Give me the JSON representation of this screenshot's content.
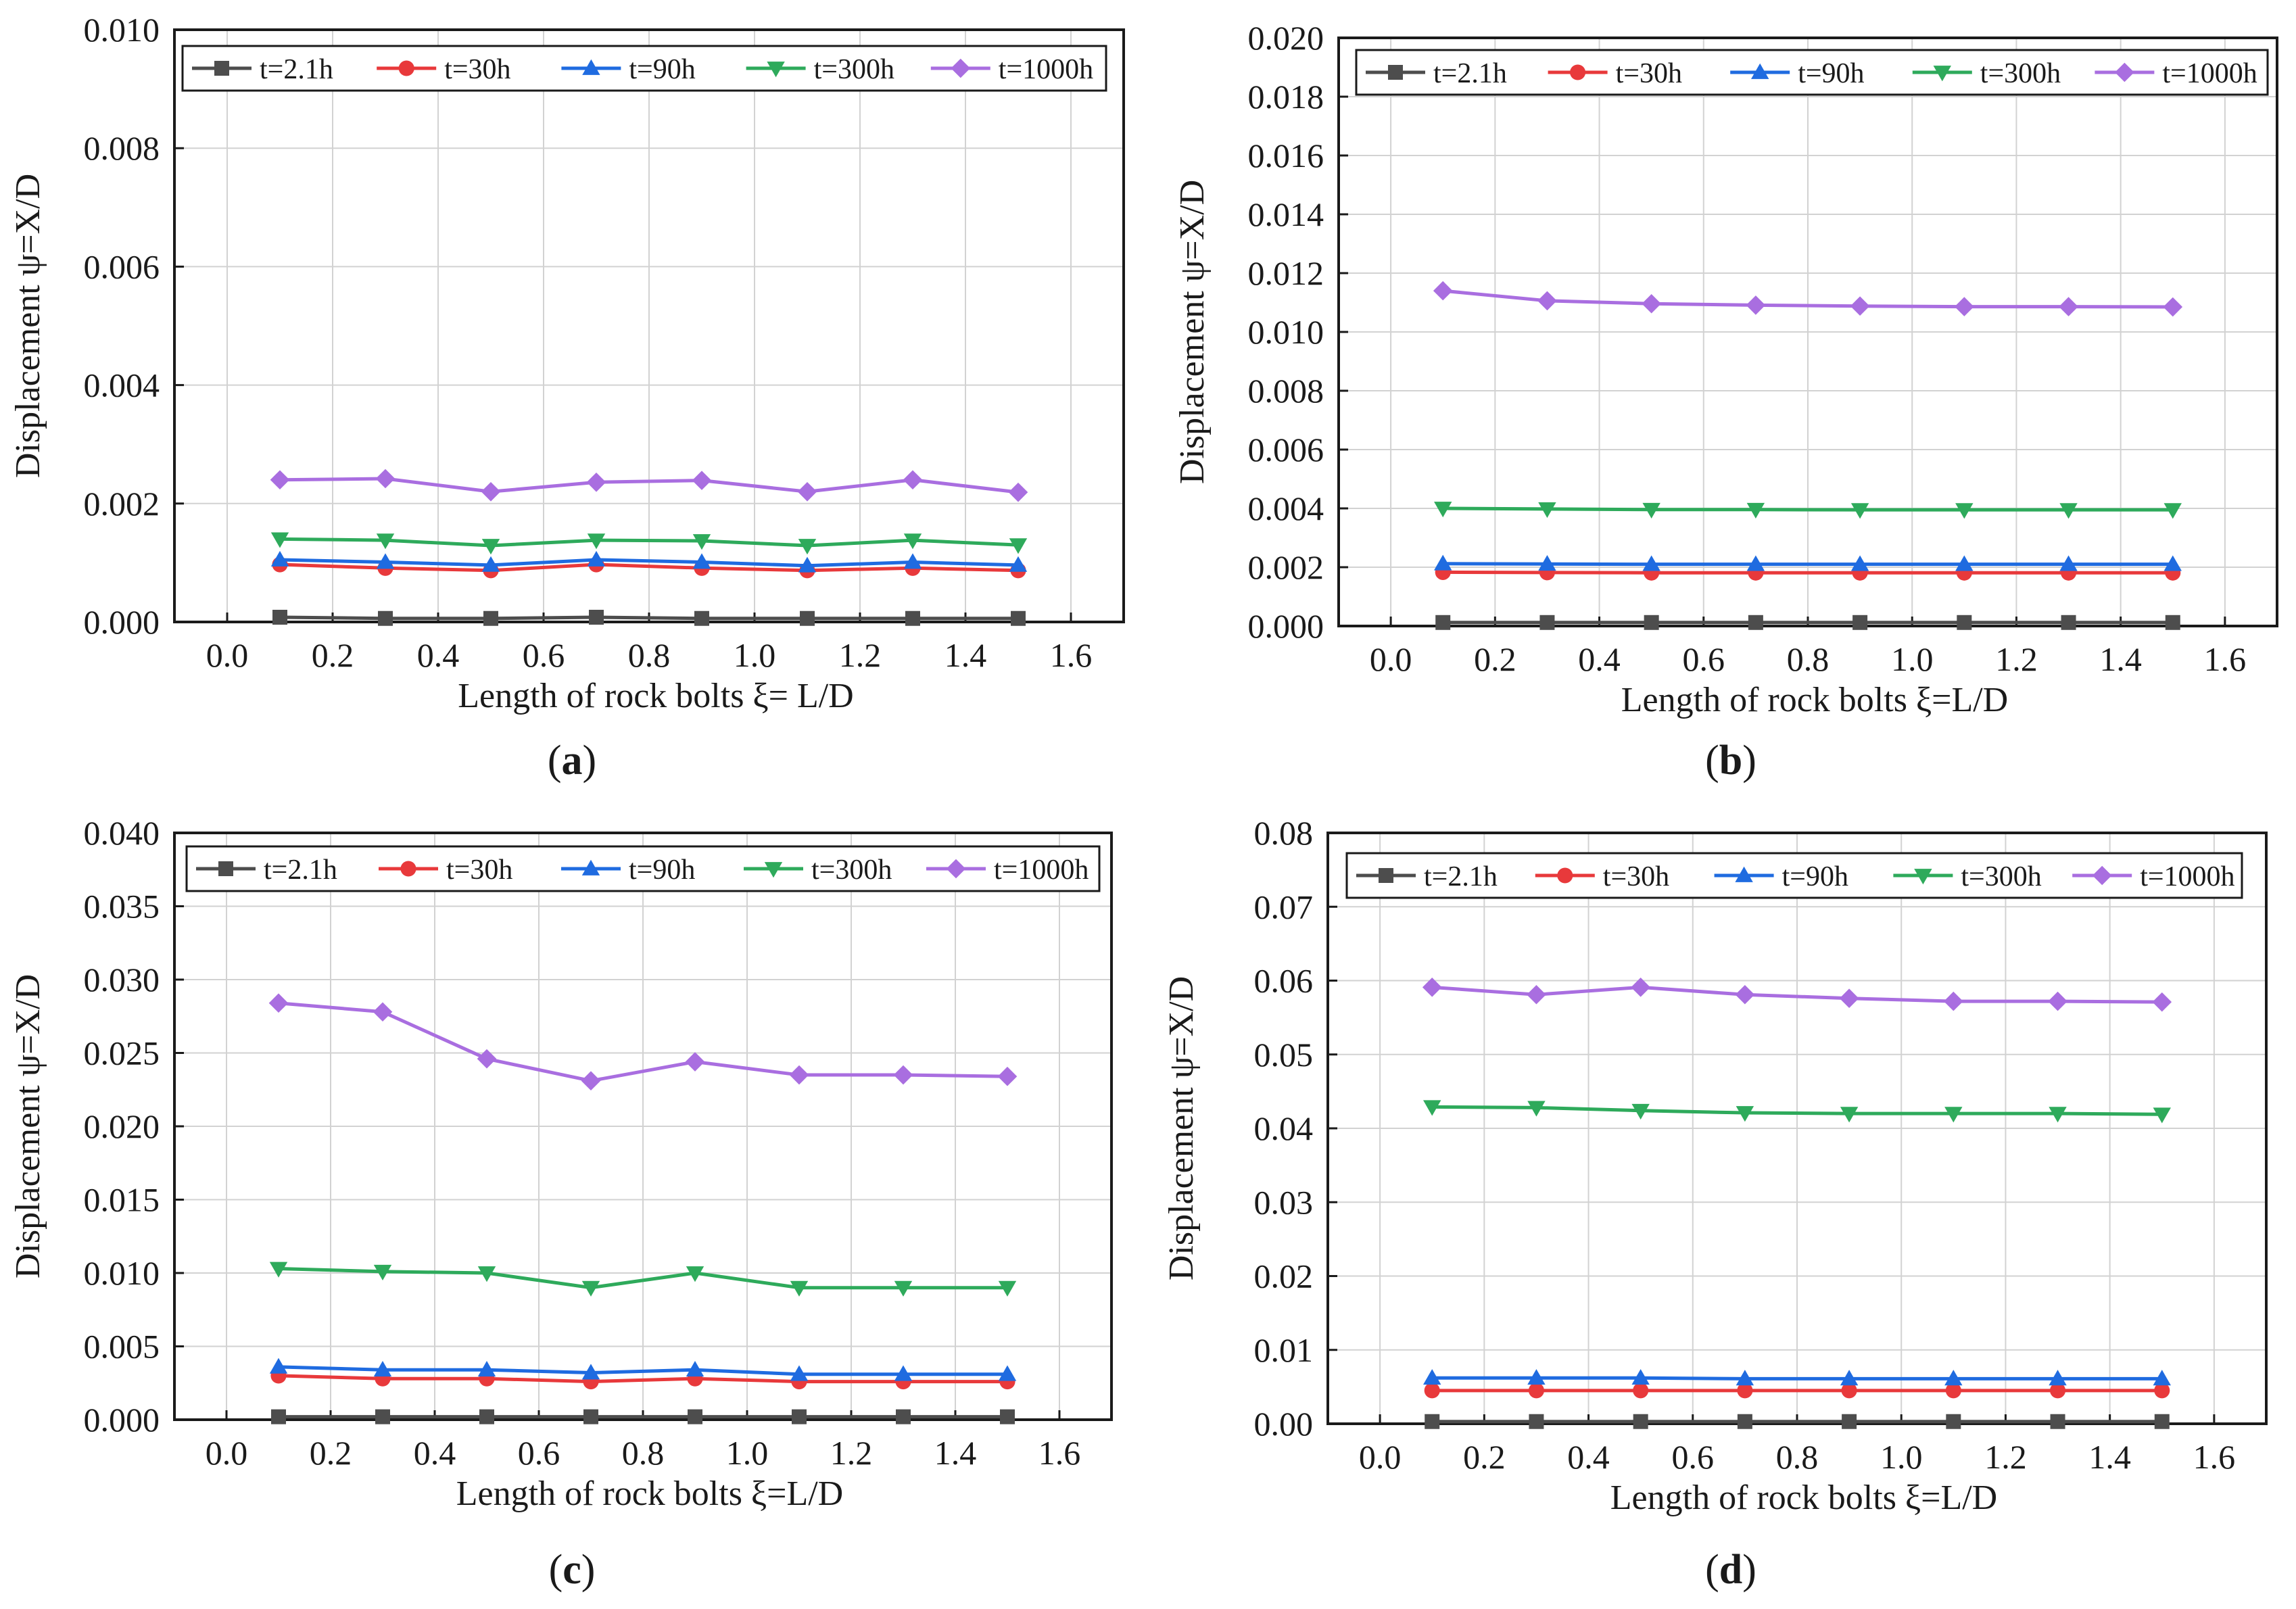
{
  "series_styles": [
    {
      "name": "t=2.1h",
      "color": "#4d4d4d",
      "marker": "square"
    },
    {
      "name": "t=30h",
      "color": "#e8393b",
      "marker": "circle"
    },
    {
      "name": "t=90h",
      "color": "#1f6be0",
      "marker": "triangle-up"
    },
    {
      "name": "t=300h",
      "color": "#2eaa5b",
      "marker": "triangle-down"
    },
    {
      "name": "t=1000h",
      "color": "#a96ee0",
      "marker": "diamond"
    }
  ],
  "chart_data": [
    {
      "type": "line",
      "panel_label": "a",
      "xlabel": "Length of rock bolts ξ= L/D",
      "ylabel": "Displacement ψ=X/D",
      "xlim": [
        -0.1,
        1.7
      ],
      "ylim": [
        0,
        0.01
      ],
      "xticks": [
        0.0,
        0.2,
        0.4,
        0.6,
        0.8,
        1.0,
        1.2,
        1.4,
        1.6
      ],
      "xtick_labels": [
        "0.0",
        "0.2",
        "0.4",
        "0.6",
        "0.8",
        "1.0",
        "1.2",
        "1.4",
        "1.6"
      ],
      "yticks": [
        0,
        0.002,
        0.004,
        0.006,
        0.008,
        0.01
      ],
      "ytick_labels": [
        "0.000",
        "0.002",
        "0.004",
        "0.006",
        "0.008",
        "0.010"
      ],
      "grid": true,
      "legend_position": "top",
      "x": [
        0.1,
        0.3,
        0.5,
        0.7,
        0.9,
        1.1,
        1.3,
        1.5
      ],
      "series": [
        {
          "name": "t=2.1h",
          "values": [
            8e-05,
            6e-05,
            6e-05,
            8e-05,
            6e-05,
            6e-05,
            6e-05,
            6e-05
          ]
        },
        {
          "name": "t=30h",
          "values": [
            0.00097,
            0.00091,
            0.00087,
            0.00097,
            0.00091,
            0.00087,
            0.00091,
            0.00087
          ]
        },
        {
          "name": "t=90h",
          "values": [
            0.00105,
            0.00101,
            0.00096,
            0.00105,
            0.00101,
            0.00095,
            0.00101,
            0.00096
          ]
        },
        {
          "name": "t=300h",
          "values": [
            0.0014,
            0.00138,
            0.00129,
            0.00138,
            0.00137,
            0.00129,
            0.00138,
            0.0013
          ]
        },
        {
          "name": "t=1000h",
          "values": [
            0.0024,
            0.00242,
            0.0022,
            0.00236,
            0.00239,
            0.0022,
            0.0024,
            0.00219
          ]
        }
      ]
    },
    {
      "type": "line",
      "panel_label": "b",
      "xlabel": "Length of rock bolts ξ=L/D",
      "ylabel": "Displacement ψ=X/D",
      "xlim": [
        -0.1,
        1.7
      ],
      "ylim": [
        0,
        0.02
      ],
      "xticks": [
        0.0,
        0.2,
        0.4,
        0.6,
        0.8,
        1.0,
        1.2,
        1.4,
        1.6
      ],
      "xtick_labels": [
        "0.0",
        "0.2",
        "0.4",
        "0.6",
        "0.8",
        "1.0",
        "1.2",
        "1.4",
        "1.6"
      ],
      "yticks": [
        0,
        0.002,
        0.004,
        0.006,
        0.008,
        0.01,
        0.012,
        0.014,
        0.016,
        0.018,
        0.02
      ],
      "ytick_labels": [
        "0.000",
        "0.002",
        "0.004",
        "0.006",
        "0.008",
        "0.010",
        "0.012",
        "0.014",
        "0.016",
        "0.018",
        "0.020"
      ],
      "grid": true,
      "legend_position": "top",
      "x": [
        0.1,
        0.3,
        0.5,
        0.7,
        0.9,
        1.1,
        1.3,
        1.5
      ],
      "series": [
        {
          "name": "t=2.1h",
          "values": [
            0.00012,
            0.00012,
            0.00012,
            0.00012,
            0.00012,
            0.00012,
            0.00012,
            0.00012
          ]
        },
        {
          "name": "t=30h",
          "values": [
            0.00183,
            0.00182,
            0.00181,
            0.00181,
            0.00181,
            0.00181,
            0.00181,
            0.00181
          ]
        },
        {
          "name": "t=90h",
          "values": [
            0.00212,
            0.00211,
            0.0021,
            0.0021,
            0.0021,
            0.0021,
            0.0021,
            0.0021
          ]
        },
        {
          "name": "t=300h",
          "values": [
            0.004,
            0.00398,
            0.00396,
            0.00396,
            0.00395,
            0.00395,
            0.00395,
            0.00395
          ]
        },
        {
          "name": "t=1000h",
          "values": [
            0.0114,
            0.01106,
            0.01096,
            0.01091,
            0.01088,
            0.01086,
            0.01086,
            0.01085
          ]
        }
      ]
    },
    {
      "type": "line",
      "panel_label": "c",
      "xlabel": "Length of rock bolts ξ=L/D",
      "ylabel": "Displacement ψ=X/D",
      "xlim": [
        -0.1,
        1.7
      ],
      "ylim": [
        0,
        0.04
      ],
      "xticks": [
        0.0,
        0.2,
        0.4,
        0.6,
        0.8,
        1.0,
        1.2,
        1.4,
        1.6
      ],
      "xtick_labels": [
        "0.0",
        "0.2",
        "0.4",
        "0.6",
        "0.8",
        "1.0",
        "1.2",
        "1.4",
        "1.6"
      ],
      "yticks": [
        0,
        0.005,
        0.01,
        0.015,
        0.02,
        0.025,
        0.03,
        0.035,
        0.04
      ],
      "ytick_labels": [
        "0.000",
        "0.005",
        "0.010",
        "0.015",
        "0.020",
        "0.025",
        "0.030",
        "0.035",
        "0.040"
      ],
      "grid": true,
      "legend_position": "top",
      "x": [
        0.1,
        0.3,
        0.5,
        0.7,
        0.9,
        1.1,
        1.3,
        1.5
      ],
      "series": [
        {
          "name": "t=2.1h",
          "values": [
            0.0002,
            0.0002,
            0.0002,
            0.0002,
            0.0002,
            0.0002,
            0.0002,
            0.0002
          ]
        },
        {
          "name": "t=30h",
          "values": [
            0.003,
            0.0028,
            0.0028,
            0.0026,
            0.0028,
            0.0026,
            0.0026,
            0.0026
          ]
        },
        {
          "name": "t=90h",
          "values": [
            0.0036,
            0.0034,
            0.0034,
            0.0032,
            0.0034,
            0.0031,
            0.0031,
            0.0031
          ]
        },
        {
          "name": "t=300h",
          "values": [
            0.0103,
            0.0101,
            0.01,
            0.009,
            0.01,
            0.009,
            0.009,
            0.009
          ]
        },
        {
          "name": "t=1000h",
          "values": [
            0.0284,
            0.0278,
            0.0246,
            0.0231,
            0.0244,
            0.0235,
            0.0235,
            0.0234
          ]
        }
      ]
    },
    {
      "type": "line",
      "panel_label": "d",
      "xlabel": "Length of rock bolts ξ=L/D",
      "ylabel": "Displacement ψ=X/D",
      "xlim": [
        -0.1,
        1.7
      ],
      "ylim": [
        0,
        0.08
      ],
      "xticks": [
        0.0,
        0.2,
        0.4,
        0.6,
        0.8,
        1.0,
        1.2,
        1.4,
        1.6
      ],
      "xtick_labels": [
        "0.0",
        "0.2",
        "0.4",
        "0.6",
        "0.8",
        "1.0",
        "1.2",
        "1.4",
        "1.6"
      ],
      "yticks": [
        0,
        0.01,
        0.02,
        0.03,
        0.04,
        0.05,
        0.06,
        0.07,
        0.08
      ],
      "ytick_labels": [
        "0.00",
        "0.01",
        "0.02",
        "0.03",
        "0.04",
        "0.05",
        "0.06",
        "0.07",
        "0.08"
      ],
      "grid": true,
      "legend_position": "top",
      "x": [
        0.1,
        0.3,
        0.5,
        0.7,
        0.9,
        1.1,
        1.3,
        1.5
      ],
      "series": [
        {
          "name": "t=2.1h",
          "values": [
            0.0003,
            0.0003,
            0.0003,
            0.0003,
            0.0003,
            0.0003,
            0.0003,
            0.0003
          ]
        },
        {
          "name": "t=30h",
          "values": [
            0.0045,
            0.0045,
            0.0045,
            0.0045,
            0.0045,
            0.0045,
            0.0045,
            0.0045
          ]
        },
        {
          "name": "t=90h",
          "values": [
            0.0062,
            0.0062,
            0.0062,
            0.0061,
            0.0061,
            0.0061,
            0.0061,
            0.0061
          ]
        },
        {
          "name": "t=300h",
          "values": [
            0.0429,
            0.0428,
            0.0424,
            0.0421,
            0.042,
            0.042,
            0.042,
            0.0419
          ]
        },
        {
          "name": "t=1000h",
          "values": [
            0.0591,
            0.0581,
            0.0591,
            0.0581,
            0.0576,
            0.0572,
            0.0572,
            0.0571
          ]
        }
      ]
    }
  ]
}
